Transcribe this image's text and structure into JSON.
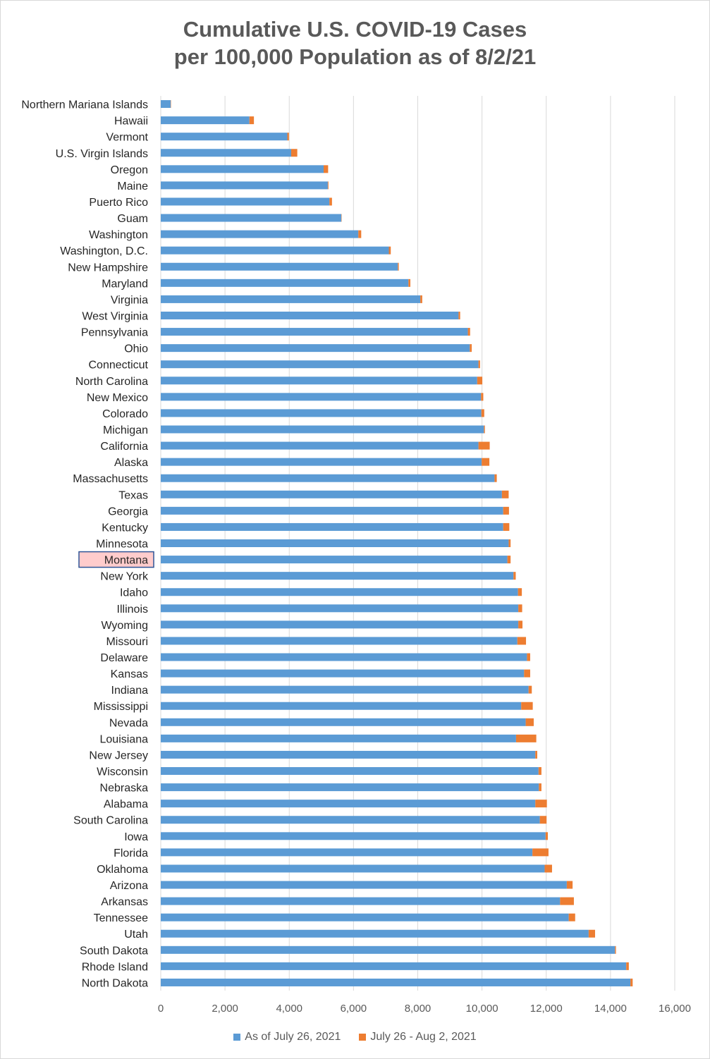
{
  "chart_data": {
    "type": "bar",
    "orientation": "horizontal",
    "stacked": true,
    "title_line1": "Cumulative U.S. COVID-19 Cases",
    "title_line2": "per 100,000 Population as of 8/2/21",
    "highlighted_category": "Montana",
    "xlim": [
      0,
      16000
    ],
    "xticks": [
      0,
      2000,
      4000,
      6000,
      8000,
      10000,
      12000,
      14000,
      16000
    ],
    "xtick_labels": [
      "0",
      "2,000",
      "4,000",
      "6,000",
      "8,000",
      "10,000",
      "12,000",
      "14,000",
      "16,000"
    ],
    "grid": "vertical",
    "legend_position": "bottom",
    "categories": [
      "Northern Mariana Islands",
      "Hawaii",
      "Vermont",
      "U.S. Virgin Islands",
      "Oregon",
      "Maine",
      "Puerto Rico",
      "Guam",
      "Washington",
      "Washington, D.C.",
      "New Hampshire",
      "Maryland",
      "Virginia",
      "West Virginia",
      "Pennsylvania",
      "Ohio",
      "Connecticut",
      "North Carolina",
      "New Mexico",
      "Colorado",
      "Michigan",
      "California",
      "Alaska",
      "Massachusetts",
      "Texas",
      "Georgia",
      "Kentucky",
      "Minnesota",
      "Montana",
      "New York",
      "Idaho",
      "Illinois",
      "Wyoming",
      "Missouri",
      "Delaware",
      "Kansas",
      "Indiana",
      "Mississippi",
      "Nevada",
      "Louisiana",
      "New Jersey",
      "Wisconsin",
      "Nebraska",
      "Alabama",
      "South Carolina",
      "Iowa",
      "Florida",
      "Oklahoma",
      "Arizona",
      "Arkansas",
      "Tennessee",
      "Utah",
      "South Dakota",
      "Rhode Island",
      "North Dakota"
    ],
    "series": [
      {
        "name": "As of July 26, 2021",
        "color": "#5b9bd5",
        "values": [
          310,
          2760,
          3940,
          4060,
          5070,
          5200,
          5250,
          5620,
          6150,
          7100,
          7380,
          7710,
          8080,
          9270,
          9560,
          9620,
          9890,
          9850,
          9970,
          9980,
          10060,
          9890,
          9990,
          10390,
          10620,
          10660,
          10660,
          10830,
          10790,
          10980,
          11120,
          11130,
          11130,
          11100,
          11400,
          11310,
          11450,
          11220,
          11360,
          11060,
          11660,
          11760,
          11770,
          11660,
          11800,
          11980,
          11570,
          11950,
          12640,
          12430,
          12700,
          13320,
          14140,
          14490,
          14620
        ]
      },
      {
        "name": "July 26 - Aug 2, 2021",
        "color": "#ed7d31",
        "values": [
          10,
          140,
          50,
          190,
          140,
          20,
          80,
          10,
          90,
          60,
          30,
          60,
          60,
          50,
          70,
          60,
          50,
          160,
          70,
          90,
          30,
          350,
          240,
          70,
          210,
          180,
          190,
          60,
          100,
          70,
          120,
          120,
          130,
          270,
          100,
          190,
          100,
          360,
          250,
          630,
          60,
          90,
          80,
          360,
          210,
          70,
          500,
          230,
          180,
          430,
          200,
          200,
          30,
          80,
          70
        ]
      }
    ]
  }
}
